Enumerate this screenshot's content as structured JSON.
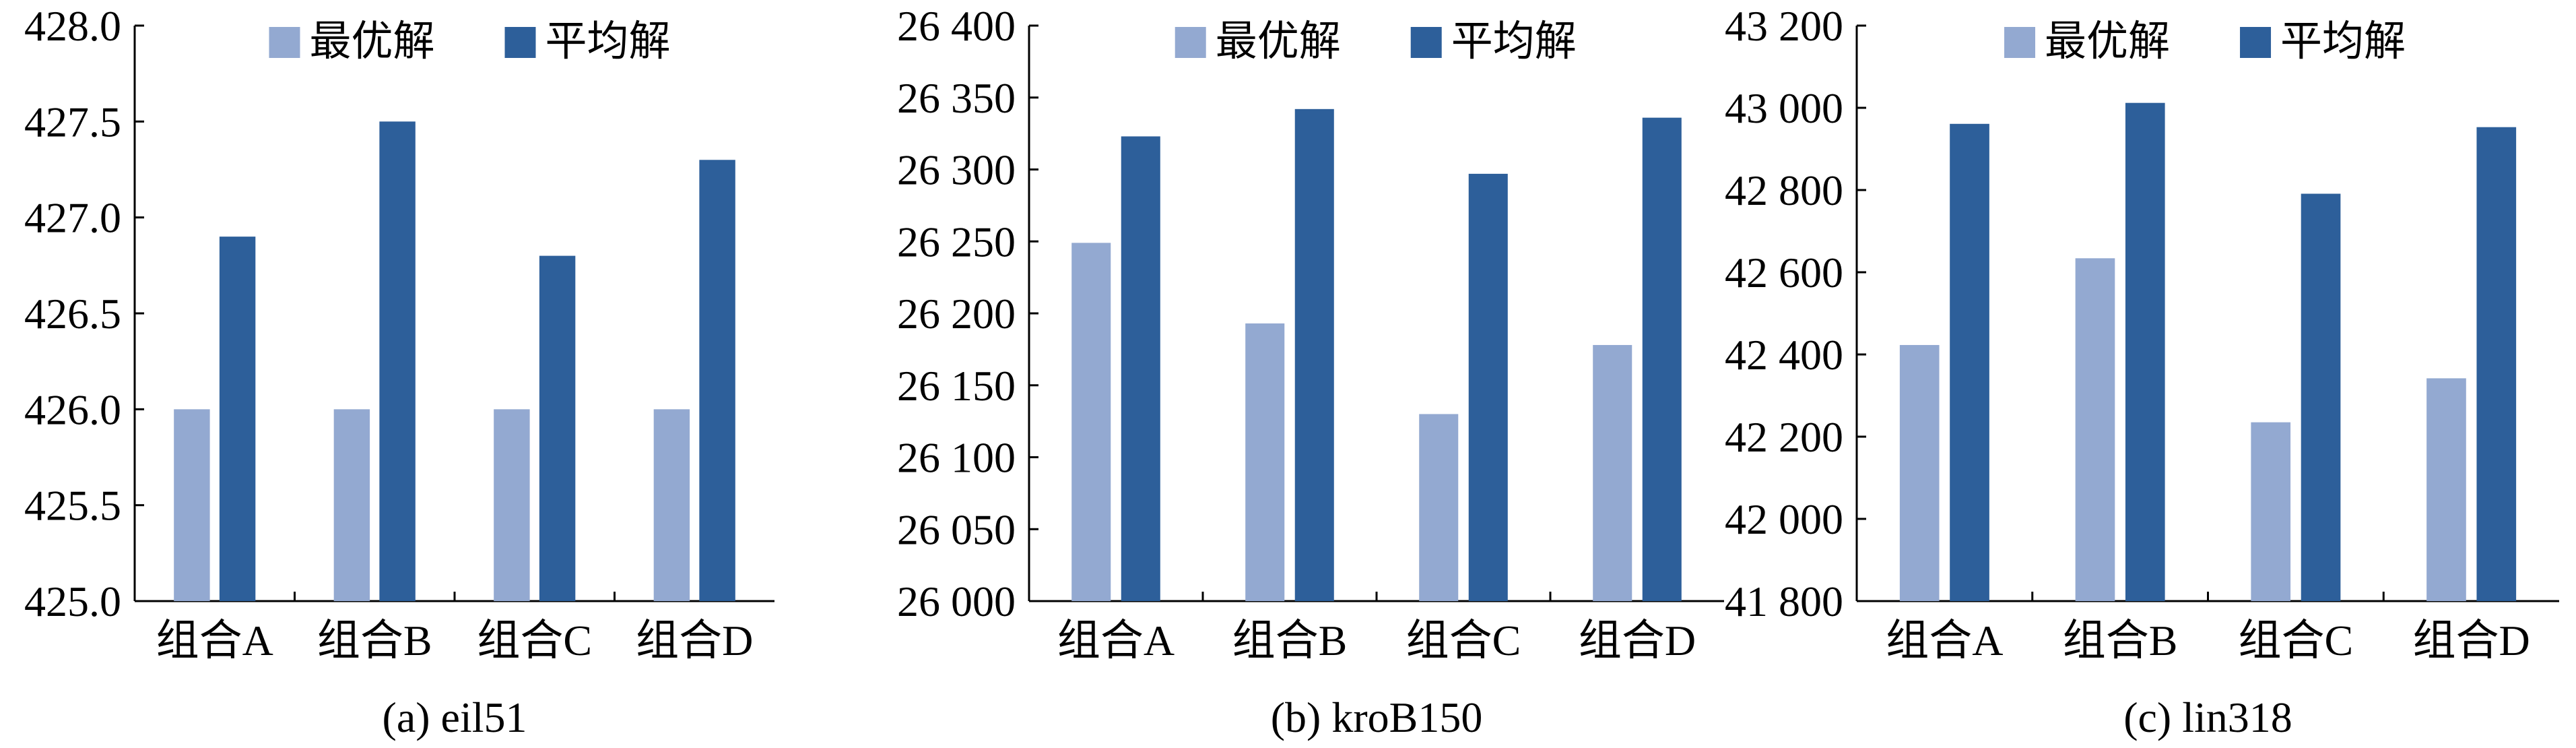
{
  "colors": {
    "best": "#93a9d1",
    "avg": "#2d5f9a"
  },
  "chart_data": [
    {
      "type": "bar",
      "title": "",
      "caption": "(a) eil51",
      "xlabel": "",
      "ylabel": "",
      "categories": [
        "组合A",
        "组合B",
        "组合C",
        "组合D"
      ],
      "series": [
        {
          "name": "最优解",
          "values": [
            426.0,
            426.0,
            426.0,
            426.0
          ]
        },
        {
          "name": "平均解",
          "values": [
            426.9,
            427.5,
            426.8,
            427.3
          ]
        }
      ],
      "ylim": [
        425.0,
        428.0
      ],
      "yticks": [
        "425.0",
        "425.5",
        "426.0",
        "426.5",
        "427.0",
        "427.5",
        "428.0"
      ],
      "grid": false,
      "legend": "top"
    },
    {
      "type": "bar",
      "title": "",
      "caption": "(b) kroB150",
      "xlabel": "",
      "ylabel": "",
      "categories": [
        "组合A",
        "组合B",
        "组合C",
        "组合D"
      ],
      "series": [
        {
          "name": "最优解",
          "values": [
            26249,
            26193,
            26130,
            26178
          ]
        },
        {
          "name": "平均解",
          "values": [
            26323,
            26342,
            26297,
            26336
          ]
        }
      ],
      "ylim": [
        26000,
        26400
      ],
      "yticks": [
        "26 000",
        "26 050",
        "26 100",
        "26 150",
        "26 200",
        "26 250",
        "26 300",
        "26 350",
        "26 400"
      ],
      "grid": false,
      "legend": "top"
    },
    {
      "type": "bar",
      "title": "",
      "caption": "(c) lin318",
      "xlabel": "",
      "ylabel": "",
      "categories": [
        "组合A",
        "组合B",
        "组合C",
        "组合D"
      ],
      "series": [
        {
          "name": "最优解",
          "values": [
            42423,
            42634,
            42235,
            42342
          ]
        },
        {
          "name": "平均解",
          "values": [
            42961,
            43012,
            42791,
            42953
          ]
        }
      ],
      "ylim": [
        41800,
        43200
      ],
      "yticks": [
        "41 800",
        "42 000",
        "42 200",
        "42 400",
        "42 600",
        "42 800",
        "43 000",
        "43 200"
      ],
      "grid": false,
      "legend": "top"
    }
  ]
}
